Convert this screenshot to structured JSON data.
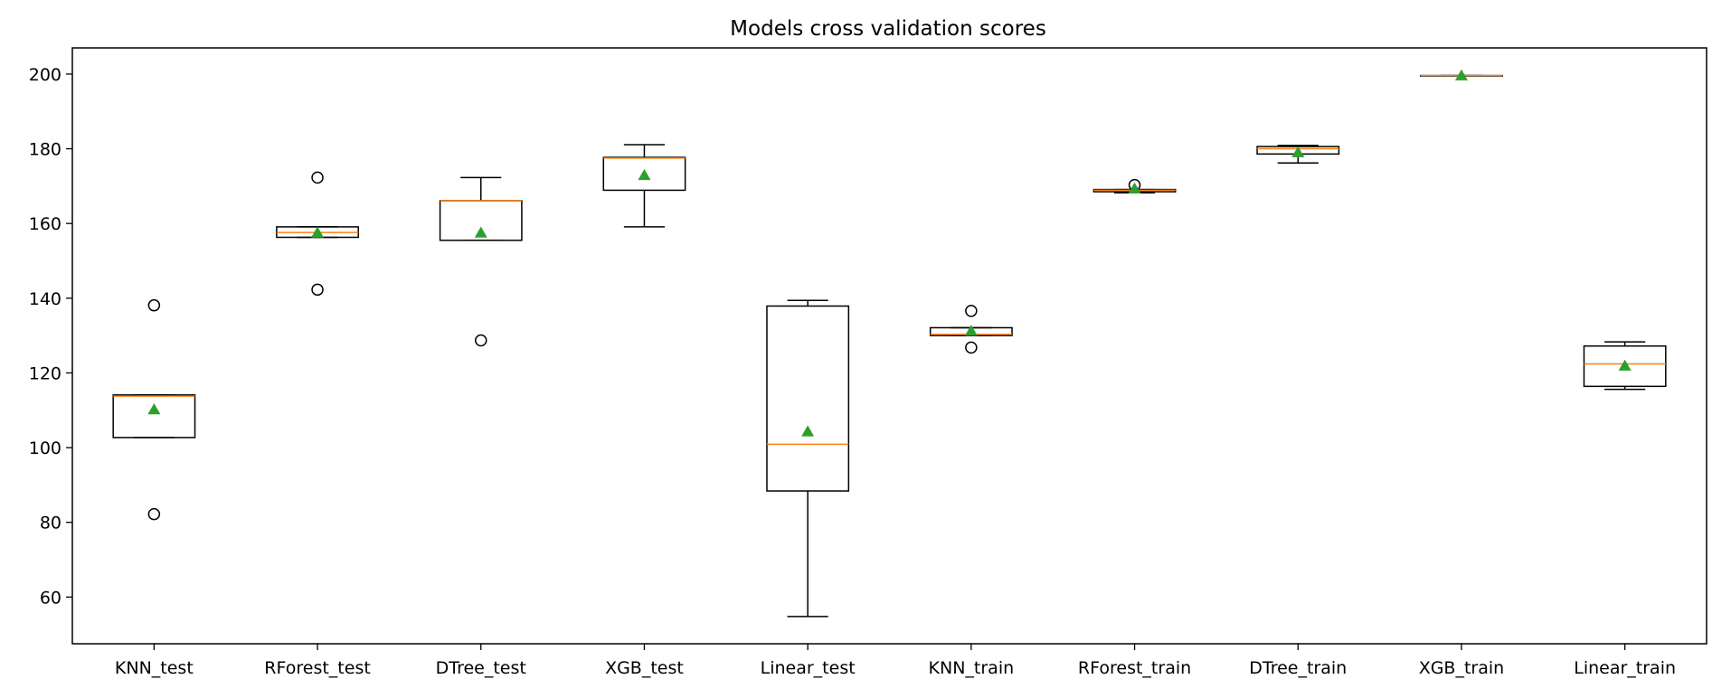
{
  "chart_data": {
    "type": "box",
    "title": "Models cross validation scores",
    "xlabel": "",
    "ylabel": "",
    "ylim": [
      47.5,
      207
    ],
    "yticks": [
      60,
      80,
      100,
      120,
      140,
      160,
      180,
      200
    ],
    "grid": false,
    "colors": {
      "box": "#000000",
      "median": "#ff7f0e",
      "mean": "#2ca02c",
      "flier": "#000000"
    },
    "categories": [
      "KNN_test",
      "RForest_test",
      "DTree_test",
      "XGB_test",
      "Linear_test",
      "KNN_train",
      "RForest_train",
      "DTree_train",
      "XGB_train",
      "Linear_train"
    ],
    "boxes": [
      {
        "label": "KNN_test",
        "whisker_low": 102.7,
        "q1": 102.7,
        "median": 113.8,
        "q3": 114.1,
        "whisker_high": 114.1,
        "mean": 110.2,
        "fliers": [
          82.2,
          138.1
        ]
      },
      {
        "label": "RForest_test",
        "whisker_low": 156.3,
        "q1": 156.3,
        "median": 157.6,
        "q3": 159.1,
        "whisker_high": 159.1,
        "mean": 157.5,
        "fliers": [
          142.3,
          172.3
        ]
      },
      {
        "label": "DTree_test",
        "whisker_low": 155.5,
        "q1": 155.5,
        "median": 166.1,
        "q3": 166.1,
        "whisker_high": 172.3,
        "mean": 157.5,
        "fliers": [
          128.7
        ]
      },
      {
        "label": "XGB_test",
        "whisker_low": 159.1,
        "q1": 168.9,
        "median": 177.5,
        "q3": 177.7,
        "whisker_high": 181.1,
        "mean": 172.9,
        "fliers": []
      },
      {
        "label": "Linear_test",
        "whisker_low": 54.8,
        "q1": 88.4,
        "median": 100.9,
        "q3": 137.9,
        "whisker_high": 139.4,
        "mean": 104.3,
        "fliers": []
      },
      {
        "label": "KNN_train",
        "whisker_low": 130.0,
        "q1": 130.0,
        "median": 130.3,
        "q3": 132.1,
        "whisker_high": 132.1,
        "mean": 131.2,
        "fliers": [
          126.8,
          136.6
        ]
      },
      {
        "label": "RForest_train",
        "whisker_low": 168.2,
        "q1": 168.5,
        "median": 168.9,
        "q3": 169.1,
        "whisker_high": 169.1,
        "mean": 169.3,
        "fliers": [
          170.3
        ]
      },
      {
        "label": "DTree_train",
        "whisker_low": 176.2,
        "q1": 178.6,
        "median": 180.0,
        "q3": 180.6,
        "whisker_high": 180.9,
        "mean": 179.0,
        "fliers": []
      },
      {
        "label": "XGB_train",
        "whisker_low": 199.6,
        "q1": 199.6,
        "median": 199.6,
        "q3": 199.6,
        "whisker_high": 199.6,
        "mean": 199.6,
        "fliers": []
      },
      {
        "label": "Linear_train",
        "whisker_low": 115.6,
        "q1": 116.4,
        "median": 122.4,
        "q3": 127.2,
        "whisker_high": 128.3,
        "mean": 121.9,
        "fliers": []
      }
    ]
  }
}
